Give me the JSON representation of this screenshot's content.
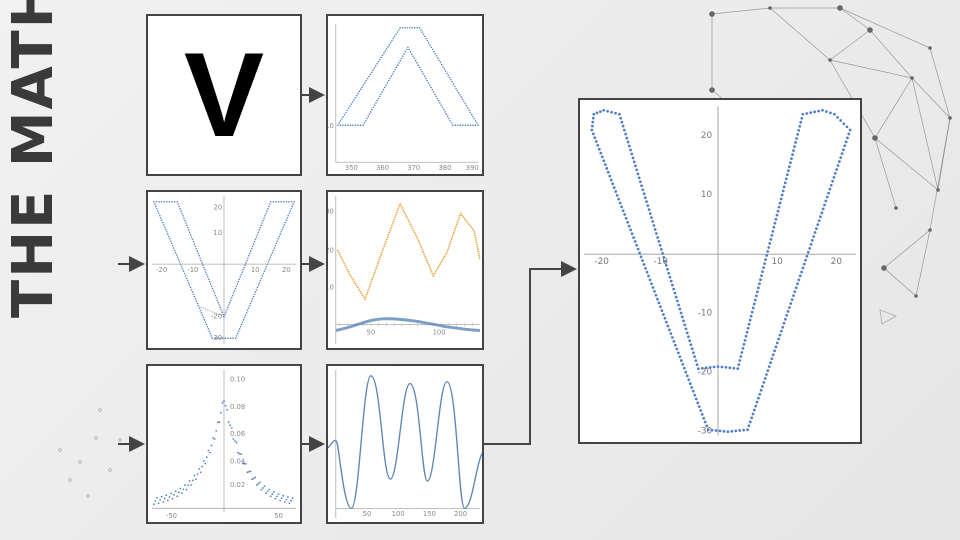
{
  "title": "THE MATH",
  "letter": "V",
  "colors": {
    "blue": "#4f7fc6",
    "orange": "#e8a33c",
    "steel": "#5d86b8",
    "arrow": "#444444"
  },
  "panels": {
    "v_outline": {
      "xticks": [
        "350",
        "360",
        "370",
        "380",
        "390"
      ],
      "yticks": [
        "10"
      ]
    },
    "v_centered": {
      "xticks": [
        "-20",
        "-10",
        "10",
        "20"
      ],
      "yticks": [
        "20",
        "10",
        "-20",
        "-30"
      ]
    },
    "time_series": {
      "xticks": [
        "50",
        "100"
      ],
      "yticks": [
        "30",
        "20",
        "10"
      ]
    },
    "spectrum": {
      "xticks": [
        "-50",
        "50"
      ],
      "yticks": [
        "0.10",
        "0.08",
        "0.06",
        "0.04",
        "0.02"
      ]
    },
    "waveform": {
      "xticks": [
        "50",
        "100",
        "150",
        "200"
      ]
    },
    "final": {
      "xticks": [
        "-20",
        "-10",
        "10",
        "20"
      ],
      "yticks": [
        "20",
        "10",
        "-10",
        "-20",
        "-30"
      ]
    }
  }
}
